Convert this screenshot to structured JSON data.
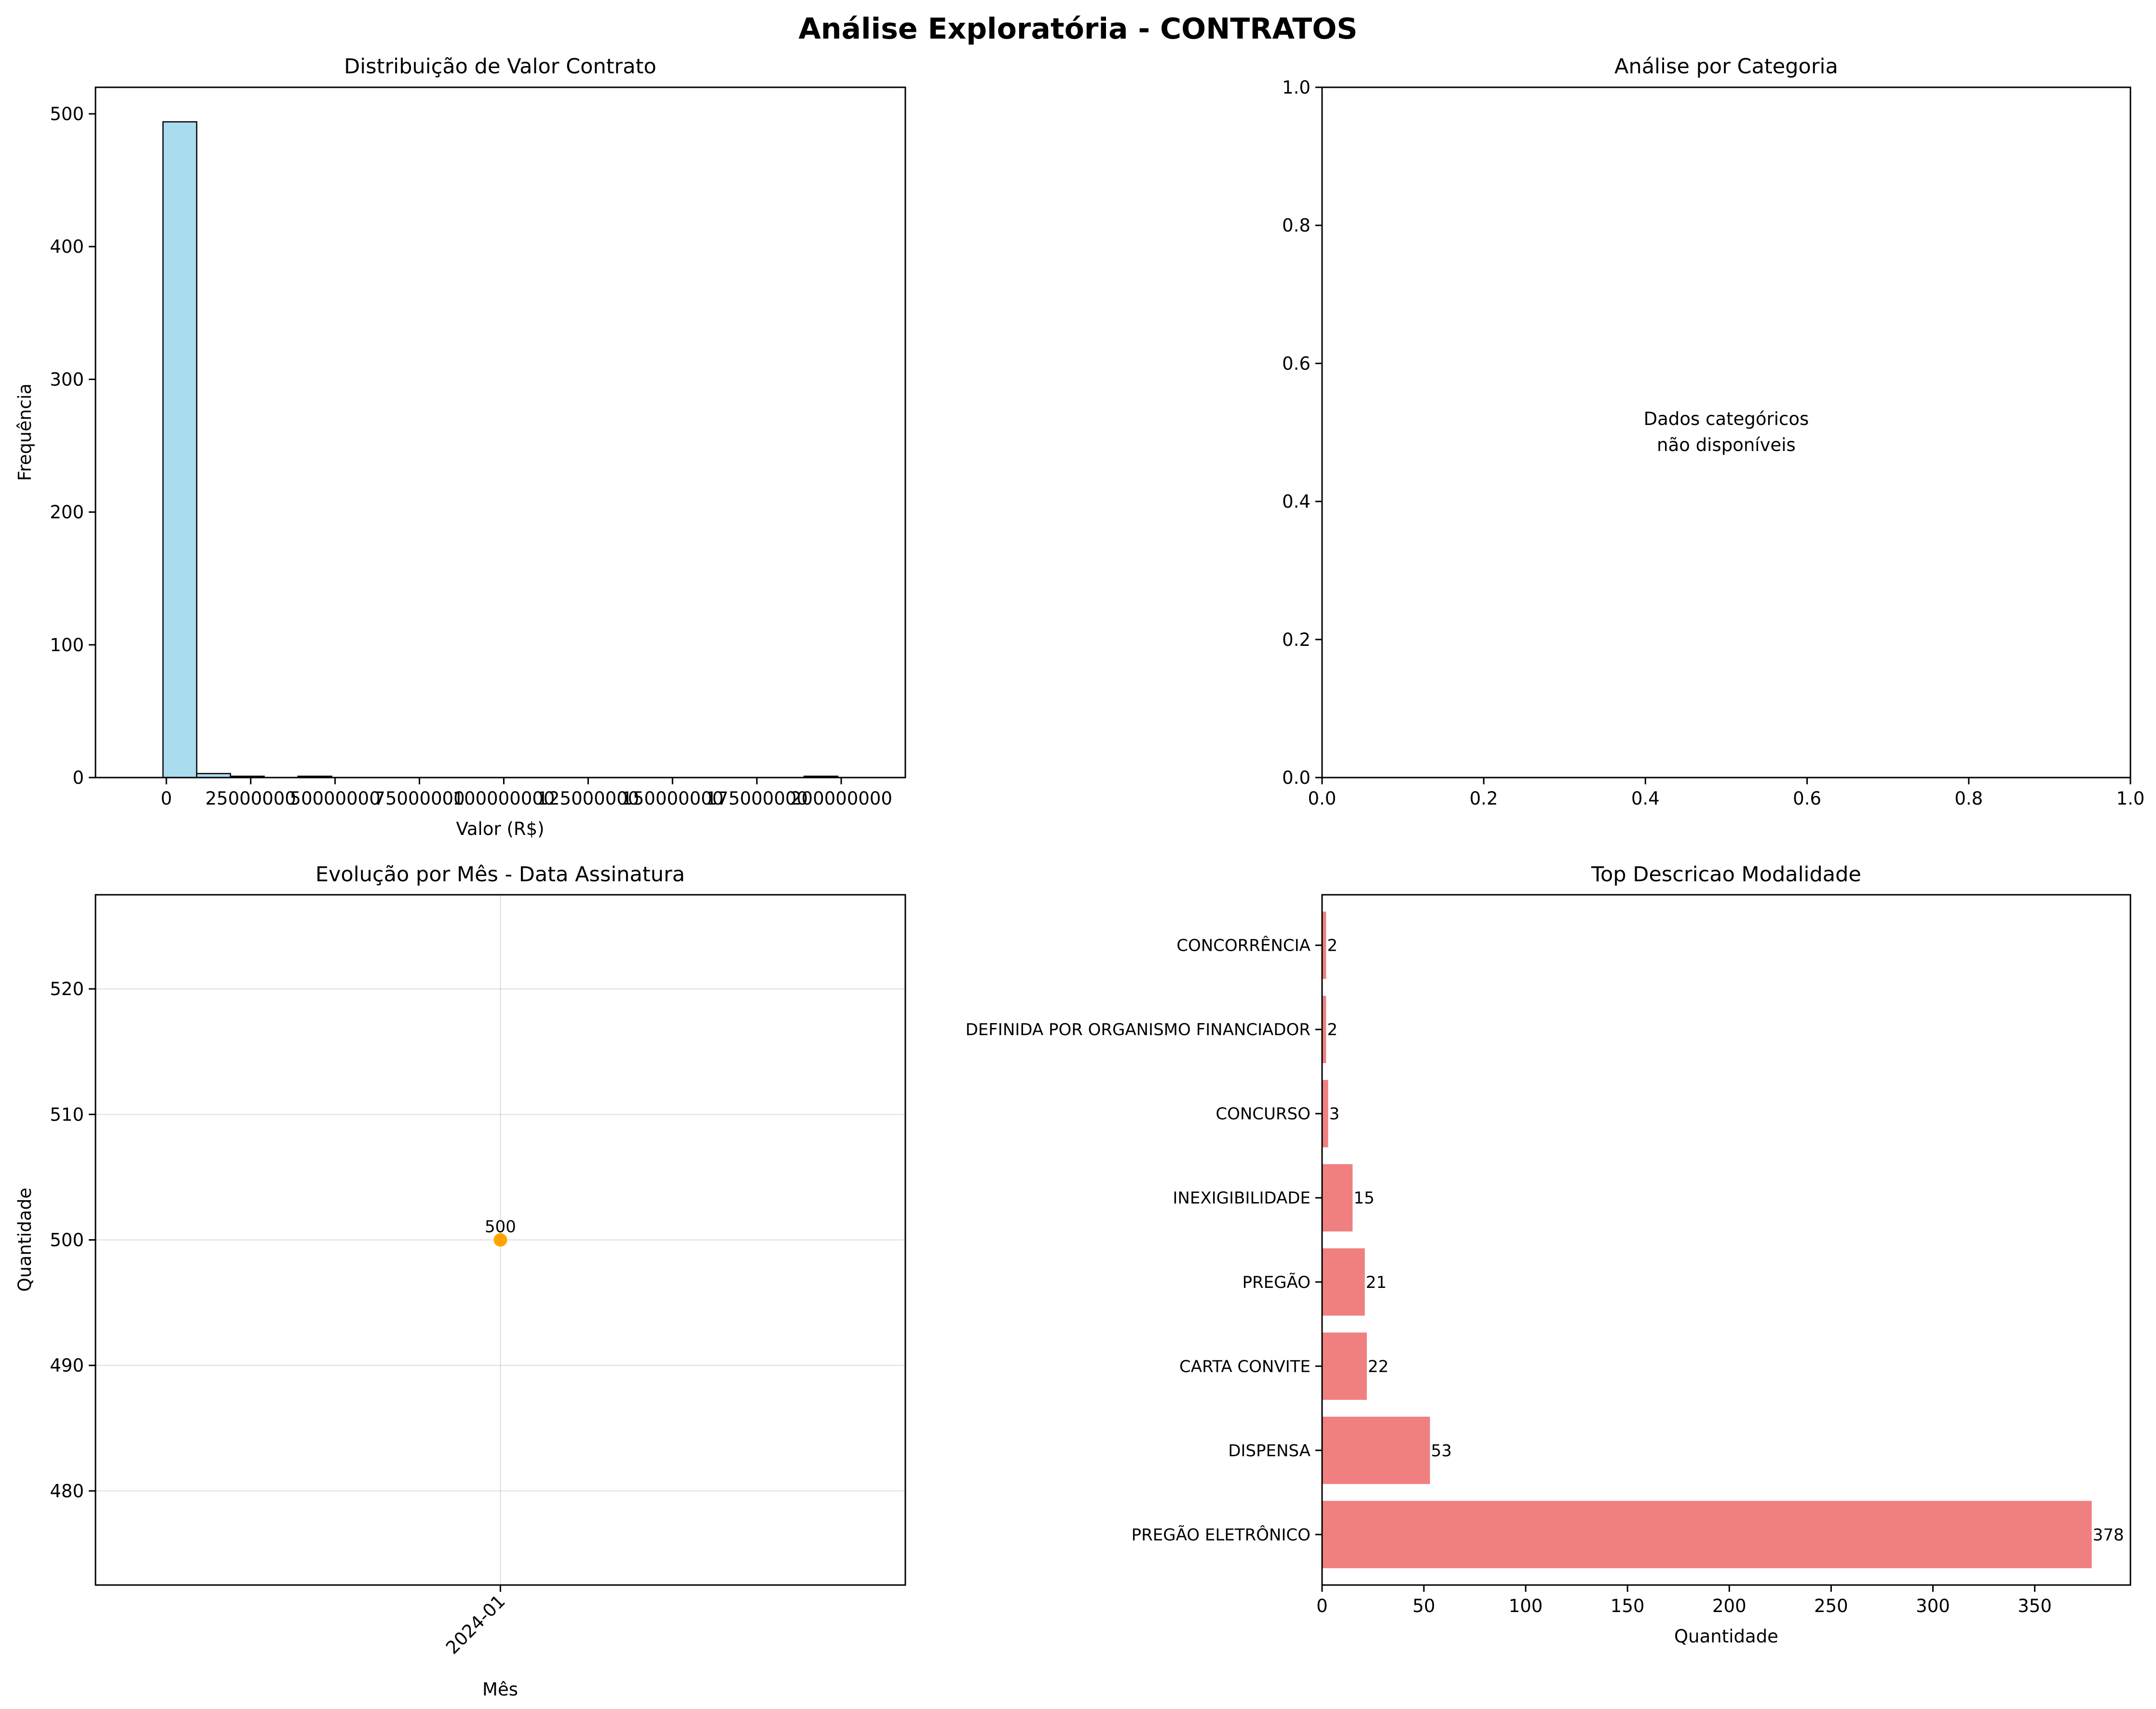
{
  "figure": {
    "title": "Análise Exploratória - CONTRATOS"
  },
  "colors": {
    "histogram_fill": "#a8dcee",
    "histogram_edge": "#000000",
    "line_point": "#ffa500",
    "bar_fill": "#f08080",
    "grid": "#b0b0b0",
    "text": "#000000"
  },
  "chart_data": [
    {
      "type": "bar",
      "subtype": "histogram",
      "title": "Distribuição de Valor Contrato",
      "xlabel": "Valor (R$)",
      "ylabel": "Frequência",
      "bin_edges": [
        -1000000,
        9000000,
        19000000,
        29000000,
        39000000,
        49000000,
        59000000,
        69000000,
        79000000,
        89000000,
        99000000,
        109000000,
        119000000,
        129000000,
        139000000,
        149000000,
        159000000,
        169000000,
        179000000,
        189000000,
        199000000
      ],
      "values": [
        494,
        3,
        1,
        0,
        1,
        0,
        0,
        0,
        0,
        0,
        0,
        0,
        0,
        0,
        0,
        0,
        0,
        0,
        0,
        1
      ],
      "xlim": [
        -21000000,
        219000000
      ],
      "ylim": [
        0,
        520
      ],
      "xticks": [
        0,
        25000000,
        50000000,
        75000000,
        100000000,
        125000000,
        150000000,
        175000000,
        200000000
      ],
      "xtick_labels": [
        "0",
        "25000000",
        "50000000",
        "75000000",
        "100000000",
        "125000000",
        "150000000",
        "175000000",
        "200000000"
      ],
      "yticks": [
        0,
        100,
        200,
        300,
        400,
        500
      ],
      "ytick_labels": [
        "0",
        "100",
        "200",
        "300",
        "400",
        "500"
      ],
      "grid": false
    },
    {
      "type": "scatter",
      "subtype": "empty",
      "title": "Análise por Categoria",
      "xlabel": "",
      "ylabel": "",
      "xlim": [
        0,
        1
      ],
      "ylim": [
        0,
        1
      ],
      "xticks": [
        0,
        0.2,
        0.4,
        0.6,
        0.8,
        1
      ],
      "xtick_labels": [
        "0.0",
        "0.2",
        "0.4",
        "0.6",
        "0.8",
        "1.0"
      ],
      "yticks": [
        0,
        0.2,
        0.4,
        0.6,
        0.8,
        1
      ],
      "ytick_labels": [
        "0.0",
        "0.2",
        "0.4",
        "0.6",
        "0.8",
        "1.0"
      ],
      "annotation": [
        "Dados categóricos",
        "não disponíveis"
      ],
      "grid": false
    },
    {
      "type": "line",
      "title": "Evolução por Mês - Data Assinatura",
      "xlabel": "Mês",
      "ylabel": "Quantidade",
      "categories": [
        "2024-01"
      ],
      "values": [
        500
      ],
      "data_labels": [
        "500"
      ],
      "ylim": [
        472.5,
        527.5
      ],
      "yticks": [
        480,
        490,
        500,
        510,
        520
      ],
      "ytick_labels": [
        "480",
        "490",
        "500",
        "510",
        "520"
      ],
      "grid": true
    },
    {
      "type": "bar",
      "orientation": "horizontal",
      "title": "Top Descricao Modalidade",
      "xlabel": "Quantidade",
      "ylabel": "",
      "categories": [
        "PREGÃO ELETRÔNICO",
        "DISPENSA",
        "CARTA CONVITE",
        "PREGÃO",
        "INEXIGIBILIDADE",
        "CONCURSO",
        "DEFINIDA POR ORGANISMO FINANCIADOR",
        "CONCORRÊNCIA"
      ],
      "values": [
        378,
        53,
        22,
        21,
        15,
        3,
        2,
        2
      ],
      "data_labels": [
        "378",
        "53",
        "22",
        "21",
        "15",
        "3",
        "2",
        "2"
      ],
      "xlim": [
        0,
        397
      ],
      "xticks": [
        0,
        50,
        100,
        150,
        200,
        250,
        300,
        350
      ],
      "xtick_labels": [
        "0",
        "50",
        "100",
        "150",
        "200",
        "250",
        "300",
        "350"
      ],
      "grid": false
    }
  ]
}
